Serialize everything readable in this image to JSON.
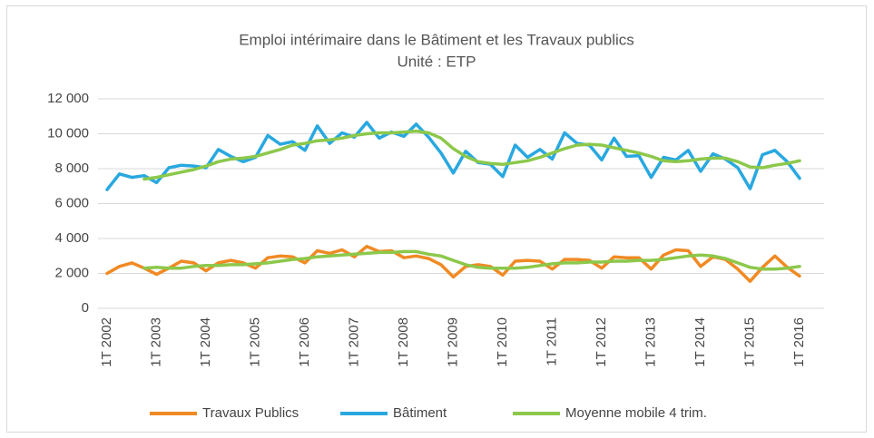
{
  "chart_data": {
    "type": "line",
    "title": "Emploi intérimaire dans le Bâtiment et les Travaux publics",
    "subtitle": "Unité : ETP",
    "categories": [
      "1T 2002",
      null,
      null,
      null,
      "1T 2003",
      null,
      null,
      null,
      "1T 2004",
      null,
      null,
      null,
      "1T 2005",
      null,
      null,
      null,
      "1T 2006",
      null,
      null,
      null,
      "1T 2007",
      null,
      null,
      null,
      "1T 2008",
      null,
      null,
      null,
      "1T 2009",
      null,
      null,
      null,
      "1T 2010",
      null,
      null,
      null,
      "1T 2011",
      null,
      null,
      null,
      "1T 2012",
      null,
      null,
      null,
      "1T 2013",
      null,
      null,
      null,
      "1T 2014",
      null,
      null,
      null,
      "1T 2015",
      null,
      null,
      null,
      "1T 2016"
    ],
    "series": [
      {
        "name": "Bâtiment",
        "color": "#29a8e0",
        "values": [
          6800,
          7700,
          7500,
          7600,
          7200,
          8050,
          8200,
          8150,
          8050,
          9100,
          8700,
          8400,
          8650,
          9900,
          9400,
          9550,
          9050,
          10450,
          9450,
          10050,
          9800,
          10650,
          9750,
          10100,
          9850,
          10550,
          9800,
          8900,
          7750,
          9000,
          8350,
          8250,
          7550,
          9350,
          8650,
          9100,
          8550,
          10050,
          9450,
          9350,
          8500,
          9750,
          8700,
          8750,
          7500,
          8650,
          8500,
          9050,
          7850,
          8850,
          8550,
          8050,
          6850,
          8800,
          9050,
          8400,
          7450
        ]
      },
      {
        "name": "Moyenne mobile 4 trim.",
        "color": "#8cc84b",
        "values": [
          null,
          null,
          null,
          7400,
          7500,
          7650,
          7800,
          7950,
          8150,
          8400,
          8550,
          8600,
          8700,
          8900,
          9100,
          9350,
          9450,
          9600,
          9650,
          9750,
          9900,
          10000,
          10050,
          10050,
          10100,
          10150,
          10050,
          9750,
          9150,
          8700,
          8400,
          8300,
          8250,
          8350,
          8450,
          8650,
          8900,
          9150,
          9350,
          9400,
          9350,
          9200,
          9050,
          8900,
          8700,
          8450,
          8400,
          8450,
          8550,
          8600,
          8600,
          8400,
          8100,
          8050,
          8200,
          8300,
          8450
        ]
      },
      {
        "name": "Travaux Publics",
        "color": "#f08a24",
        "values": [
          2000,
          2400,
          2600,
          2300,
          1950,
          2300,
          2700,
          2600,
          2150,
          2600,
          2750,
          2600,
          2300,
          2900,
          3000,
          2950,
          2600,
          3300,
          3150,
          3350,
          2950,
          3550,
          3250,
          3300,
          2900,
          3000,
          2850,
          2500,
          1800,
          2400,
          2500,
          2400,
          1900,
          2700,
          2750,
          2700,
          2250,
          2800,
          2800,
          2750,
          2300,
          2950,
          2900,
          2900,
          2250,
          3050,
          3350,
          3300,
          2400,
          2950,
          2800,
          2250,
          1550,
          2350,
          3000,
          2350,
          1850
        ]
      },
      {
        "color": "#8cc84b",
        "values": [
          null,
          null,
          null,
          2300,
          2350,
          2300,
          2300,
          2400,
          2450,
          2450,
          2500,
          2500,
          2550,
          2600,
          2700,
          2800,
          2850,
          2950,
          3000,
          3050,
          3100,
          3150,
          3200,
          3200,
          3250,
          3250,
          3100,
          3000,
          2750,
          2500,
          2350,
          2300,
          2300,
          2300,
          2350,
          2450,
          2550,
          2600,
          2600,
          2650,
          2650,
          2700,
          2700,
          2750,
          2750,
          2800,
          2900,
          3000,
          3050,
          3000,
          2850,
          2600,
          2350,
          2250,
          2250,
          2300,
          2400
        ]
      }
    ],
    "ylim": [
      0,
      12000
    ],
    "yticks": [
      0,
      {
        "value": 2000,
        "label": "2 000"
      },
      {
        "value": 4000,
        "label": "4 000"
      },
      {
        "value": 6000,
        "label": "6 000"
      },
      {
        "value": 8000,
        "label": "8 000"
      },
      {
        "value": 10000,
        "label": "10 000"
      },
      {
        "value": 12000,
        "label": "12 000"
      }
    ],
    "grid": true,
    "legend": "bottom"
  }
}
